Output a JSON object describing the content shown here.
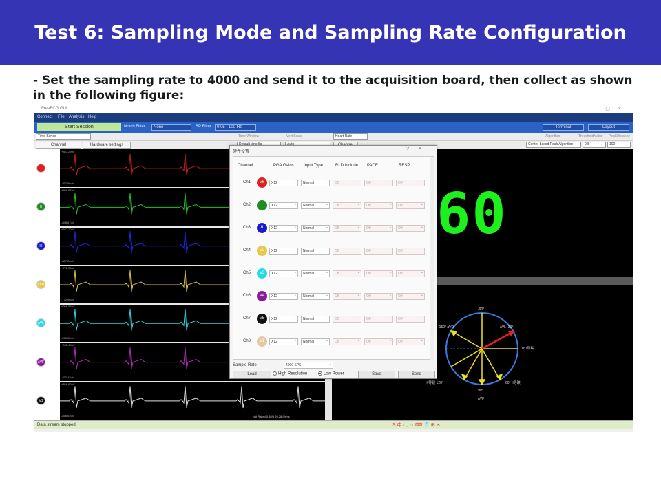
{
  "slide": {
    "title": "Test 6: Sampling Mode and Sampling Rate Configuration",
    "body": "- Set the sampling rate to 4000 and send it to the acquisition board, then collect as shown in the following figure:"
  },
  "app": {
    "window_title": "FreeECG GUI",
    "menu": [
      "Connect",
      "File",
      "Analysis",
      "Help"
    ],
    "toolbar": {
      "start_session": "Start Session",
      "notch_filter_label": "Notch Filter",
      "notch_filter_value": "None",
      "bp_filter_label": "BP Filter",
      "bp_filter_value": "0.05 - 100 Hz",
      "terminal": "Terminal",
      "layout": "Layout"
    },
    "toolbar2": {
      "view_mode": "Time Series",
      "time_window_label": "Time Window",
      "vert_scale_label": "Vert Scale",
      "heart_rate_select": "Heart Rate",
      "algorithm_label": "Algorithm",
      "threshold_label": "Threshold/value",
      "peak_distance_label": "PeakDistance"
    },
    "toolbar3": {
      "channel_tab": "Channel",
      "hardware_tab": "Hardware settings",
      "time_window_value": "Default time 5s",
      "vert_scale_value": "Auto",
      "channel_btn": "Channel",
      "algorithm_value": "Center-based Peak Algorithm",
      "threshold_value": "0.8",
      "peak_distance_value": "100"
    },
    "channels": [
      {
        "badge": "I",
        "color": "#e02020",
        "top_label": "+857.29uV",
        "bottom_label": "-857.96uV"
      },
      {
        "badge": "II",
        "color": "#1e8c1e",
        "top_label": "+898.67uV",
        "bottom_label": "-898.67uV"
      },
      {
        "badge": "III",
        "color": "#1a1ac8",
        "top_label": "+387.20uV",
        "bottom_label": "-387.20uV"
      },
      {
        "badge": "aVR",
        "color": "#e6c84a",
        "top_label": "+772.56uV",
        "bottom_label": "-772.56uV"
      },
      {
        "badge": "aVL",
        "color": "#28d8e8",
        "top_label": "+206.55uV",
        "bottom_label": "-206.55uV"
      },
      {
        "badge": "aVF",
        "color": "#8a1a9a",
        "top_label": "+392.43uV",
        "bottom_label": "-392.43uV"
      },
      {
        "badge": "V1",
        "color": "#111111",
        "top_label": "+856.62uV",
        "bottom_label": "-856.62uV"
      }
    ],
    "wave_colors": [
      "#c02020",
      "#22c022",
      "#2424d8",
      "#d8c040",
      "#30d8d8",
      "#b02ab0",
      "#e0e0e0"
    ],
    "wave_footer": "Not Railed 0.38% 69.28uVrms",
    "heart_rate": "60",
    "axis_labels": {
      "top": "-90°",
      "left_upper": "-150° aVR",
      "right_upper": "aVL -30°",
      "right": "0° I导联",
      "lower_left": "III导联 120°",
      "lower_right": "60° II导联",
      "bottom": "90°",
      "bottom2": "aVF"
    },
    "status": "Data stream stopped",
    "ime": "S中·,☺⌨👕⊞✂"
  },
  "dialog": {
    "title": "硬件设置",
    "help": "?",
    "close": "×",
    "columns": [
      "Channel",
      "PGA Gains",
      "Input Type",
      "RLD Include",
      "PACE",
      "RESP"
    ],
    "rows": [
      {
        "label": "Ch1",
        "badge": "V6",
        "color": "#e02020",
        "gain": "X12",
        "input": "Normal",
        "rld": "Off",
        "pace": "Off",
        "resp": "Off"
      },
      {
        "label": "Ch2",
        "badge": "I",
        "color": "#1e8c1e",
        "gain": "X12",
        "input": "Normal",
        "rld": "Off",
        "pace": "Off",
        "resp": "Off"
      },
      {
        "label": "Ch3",
        "badge": "II",
        "color": "#1a1ac8",
        "gain": "X12",
        "input": "Normal",
        "rld": "Off",
        "pace": "Off",
        "resp": "Off"
      },
      {
        "label": "Ch4",
        "badge": "V2",
        "color": "#e6c84a",
        "gain": "X12",
        "input": "Normal",
        "rld": "Off",
        "pace": "Off",
        "resp": "Off"
      },
      {
        "label": "Ch5",
        "badge": "V3",
        "color": "#28d8e8",
        "gain": "X12",
        "input": "Normal",
        "rld": "Off",
        "pace": "Off",
        "resp": "Off"
      },
      {
        "label": "Ch6",
        "badge": "V4",
        "color": "#8a1a9a",
        "gain": "X12",
        "input": "Normal",
        "rld": "Off",
        "pace": "Off",
        "resp": "Off"
      },
      {
        "label": "Ch7",
        "badge": "V5",
        "color": "#111111",
        "gain": "X12",
        "input": "Normal",
        "rld": "Off",
        "pace": "Off",
        "resp": "Off"
      },
      {
        "label": "Ch8",
        "badge": "V1",
        "color": "#e6c8a0",
        "gain": "X12",
        "input": "Normal",
        "rld": "Off",
        "pace": "Off",
        "resp": "Off"
      }
    ],
    "sample_rate_label": "Sample Rate",
    "sample_rate_value": "4000 SPS",
    "load": "Load",
    "high_res": "High Resolution",
    "low_power": "Low Power",
    "save": "Save",
    "send": "Send"
  }
}
